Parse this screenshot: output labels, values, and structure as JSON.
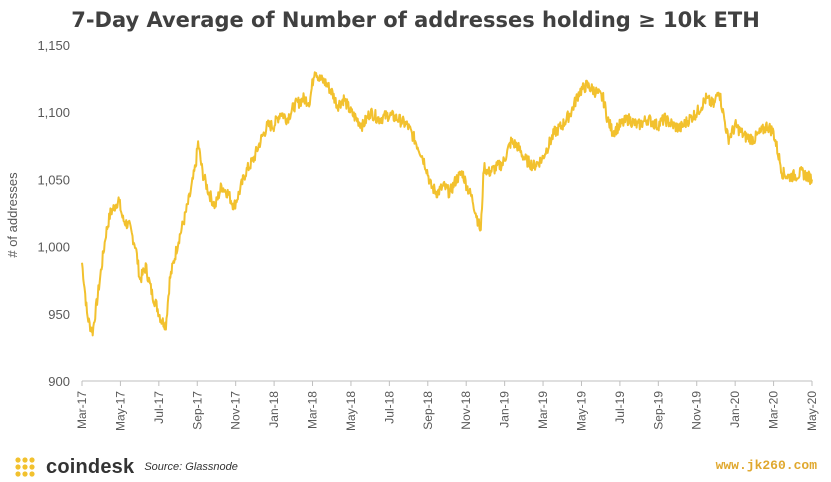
{
  "chart_data": {
    "type": "line",
    "title": "7-Day Average of Number of addresses holding ≥ 10k ETH",
    "ylabel": "# of addresses",
    "xlabel": "",
    "ylim": [
      900,
      1150
    ],
    "y_ticks": [
      "900",
      "950",
      "1,000",
      "1,050",
      "1,100",
      "1,150"
    ],
    "x_ticks": [
      "Mar-17",
      "May-17",
      "Jul-17",
      "Sep-17",
      "Nov-17",
      "Jan-18",
      "Mar-18",
      "May-18",
      "Jul-18",
      "Sep-18",
      "Nov-18",
      "Jan-19",
      "Mar-19",
      "May-19",
      "Jul-19",
      "Sep-19",
      "Nov-19",
      "Jan-20",
      "Mar-20",
      "May-20"
    ],
    "x_range": [
      "2017-03-01",
      "2020-05-01"
    ],
    "grid": false,
    "line_color": "#f2c12e",
    "series": [
      {
        "points": [
          [
            "2017-03-01",
            988
          ],
          [
            "2017-03-05",
            970
          ],
          [
            "2017-03-09",
            950
          ],
          [
            "2017-03-13",
            942
          ],
          [
            "2017-03-18",
            937
          ],
          [
            "2017-03-25",
            960
          ],
          [
            "2017-04-01",
            985
          ],
          [
            "2017-04-08",
            1010
          ],
          [
            "2017-04-15",
            1025
          ],
          [
            "2017-04-22",
            1030
          ],
          [
            "2017-04-28",
            1035
          ],
          [
            "2017-05-05",
            1020
          ],
          [
            "2017-05-15",
            1015
          ],
          [
            "2017-05-25",
            1000
          ],
          [
            "2017-06-01",
            975
          ],
          [
            "2017-06-10",
            985
          ],
          [
            "2017-06-20",
            965
          ],
          [
            "2017-06-28",
            955
          ],
          [
            "2017-07-05",
            945
          ],
          [
            "2017-07-12",
            942
          ],
          [
            "2017-07-18",
            975
          ],
          [
            "2017-07-25",
            990
          ],
          [
            "2017-08-01",
            1005
          ],
          [
            "2017-08-10",
            1020
          ],
          [
            "2017-08-20",
            1040
          ],
          [
            "2017-08-28",
            1060
          ],
          [
            "2017-09-01",
            1077
          ],
          [
            "2017-09-08",
            1055
          ],
          [
            "2017-09-18",
            1040
          ],
          [
            "2017-09-28",
            1030
          ],
          [
            "2017-10-08",
            1045
          ],
          [
            "2017-10-18",
            1040
          ],
          [
            "2017-10-28",
            1030
          ],
          [
            "2017-11-05",
            1040
          ],
          [
            "2017-11-15",
            1055
          ],
          [
            "2017-11-28",
            1065
          ],
          [
            "2017-12-10",
            1080
          ],
          [
            "2017-12-20",
            1090
          ],
          [
            "2017-12-30",
            1090
          ],
          [
            "2018-01-10",
            1100
          ],
          [
            "2018-01-20",
            1095
          ],
          [
            "2018-02-01",
            1105
          ],
          [
            "2018-02-15",
            1110
          ],
          [
            "2018-02-25",
            1108
          ],
          [
            "2018-03-05",
            1133
          ],
          [
            "2018-03-12",
            1125
          ],
          [
            "2018-03-22",
            1122
          ],
          [
            "2018-04-01",
            1115
          ],
          [
            "2018-04-10",
            1105
          ],
          [
            "2018-04-20",
            1110
          ],
          [
            "2018-05-01",
            1100
          ],
          [
            "2018-05-10",
            1095
          ],
          [
            "2018-05-20",
            1090
          ],
          [
            "2018-06-01",
            1100
          ],
          [
            "2018-06-15",
            1095
          ],
          [
            "2018-06-30",
            1098
          ],
          [
            "2018-07-15",
            1095
          ],
          [
            "2018-07-30",
            1090
          ],
          [
            "2018-08-10",
            1080
          ],
          [
            "2018-08-20",
            1070
          ],
          [
            "2018-08-28",
            1060
          ],
          [
            "2018-09-05",
            1045
          ],
          [
            "2018-09-15",
            1040
          ],
          [
            "2018-09-25",
            1045
          ],
          [
            "2018-10-05",
            1040
          ],
          [
            "2018-10-15",
            1050
          ],
          [
            "2018-10-25",
            1055
          ],
          [
            "2018-11-01",
            1045
          ],
          [
            "2018-11-10",
            1035
          ],
          [
            "2018-11-18",
            1020
          ],
          [
            "2018-11-23",
            1011
          ],
          [
            "2018-11-28",
            1060
          ],
          [
            "2018-12-05",
            1055
          ],
          [
            "2018-12-15",
            1058
          ],
          [
            "2018-12-28",
            1062
          ],
          [
            "2019-01-10",
            1078
          ],
          [
            "2019-01-20",
            1075
          ],
          [
            "2019-02-01",
            1065
          ],
          [
            "2019-02-15",
            1060
          ],
          [
            "2019-02-28",
            1065
          ],
          [
            "2019-03-10",
            1075
          ],
          [
            "2019-03-20",
            1085
          ],
          [
            "2019-04-01",
            1090
          ],
          [
            "2019-04-15",
            1100
          ],
          [
            "2019-04-28",
            1115
          ],
          [
            "2019-05-10",
            1120
          ],
          [
            "2019-05-25",
            1115
          ],
          [
            "2019-06-05",
            1110
          ],
          [
            "2019-06-12",
            1095
          ],
          [
            "2019-06-20",
            1085
          ],
          [
            "2019-07-01",
            1090
          ],
          [
            "2019-07-15",
            1095
          ],
          [
            "2019-07-30",
            1090
          ],
          [
            "2019-08-15",
            1095
          ],
          [
            "2019-08-30",
            1090
          ],
          [
            "2019-09-10",
            1095
          ],
          [
            "2019-09-25",
            1090
          ],
          [
            "2019-10-05",
            1088
          ],
          [
            "2019-10-20",
            1095
          ],
          [
            "2019-11-01",
            1100
          ],
          [
            "2019-11-15",
            1110
          ],
          [
            "2019-11-28",
            1105
          ],
          [
            "2019-12-05",
            1118
          ],
          [
            "2019-12-12",
            1100
          ],
          [
            "2019-12-20",
            1080
          ],
          [
            "2020-01-01",
            1090
          ],
          [
            "2020-01-15",
            1082
          ],
          [
            "2020-01-30",
            1080
          ],
          [
            "2020-02-10",
            1085
          ],
          [
            "2020-02-20",
            1090
          ],
          [
            "2020-03-01",
            1085
          ],
          [
            "2020-03-08",
            1070
          ],
          [
            "2020-03-15",
            1055
          ],
          [
            "2020-03-25",
            1052
          ],
          [
            "2020-04-05",
            1053
          ],
          [
            "2020-04-15",
            1055
          ],
          [
            "2020-04-25",
            1052
          ],
          [
            "2020-05-01",
            1050
          ]
        ]
      }
    ]
  },
  "footer": {
    "brand": "coindesk",
    "source": "Source: Glassnode",
    "watermark": "www.jk260.com"
  },
  "colors": {
    "line": "#f2c12e",
    "brand_dots": "#f2c12e",
    "axis": "#bfbfbf"
  }
}
